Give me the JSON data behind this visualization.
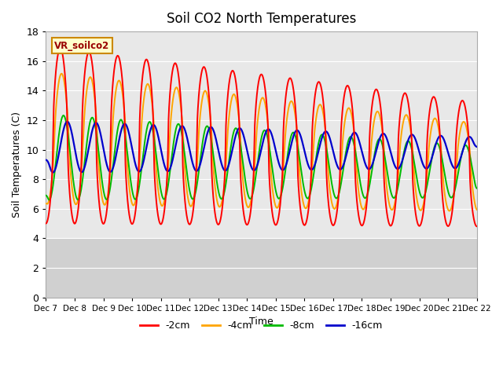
{
  "title": "Soil CO2 North Temperatures",
  "xlabel": "Time",
  "ylabel": "Soil Temperatures (C)",
  "ylim": [
    0,
    18
  ],
  "yticks": [
    0,
    2,
    4,
    6,
    8,
    10,
    12,
    14,
    16,
    18
  ],
  "background_color": "#ffffff",
  "plot_bg_upper": "#e8e8e8",
  "plot_bg_lower": "#d0d0d0",
  "legend_label": "VR_soilco2",
  "series_labels": [
    "-2cm",
    "-4cm",
    "-8cm",
    "-16cm"
  ],
  "series_colors": [
    "#ff0000",
    "#ffa500",
    "#00bb00",
    "#0000cc"
  ],
  "x_tick_labels": [
    "Dec 7",
    "Dec 8",
    "Dec 9",
    "Dec 10",
    "Dec 11",
    "Dec 12",
    "Dec 13",
    "Dec 14",
    "Dec 15",
    "Dec 16",
    "Dec 17",
    "Dec 18",
    "Dec 19",
    "Dec 20",
    "Dec 21",
    "Dec 22"
  ],
  "n_points": 1600,
  "days": 15,
  "grid_color": "#cccccc",
  "spine_color": "#aaaaaa"
}
